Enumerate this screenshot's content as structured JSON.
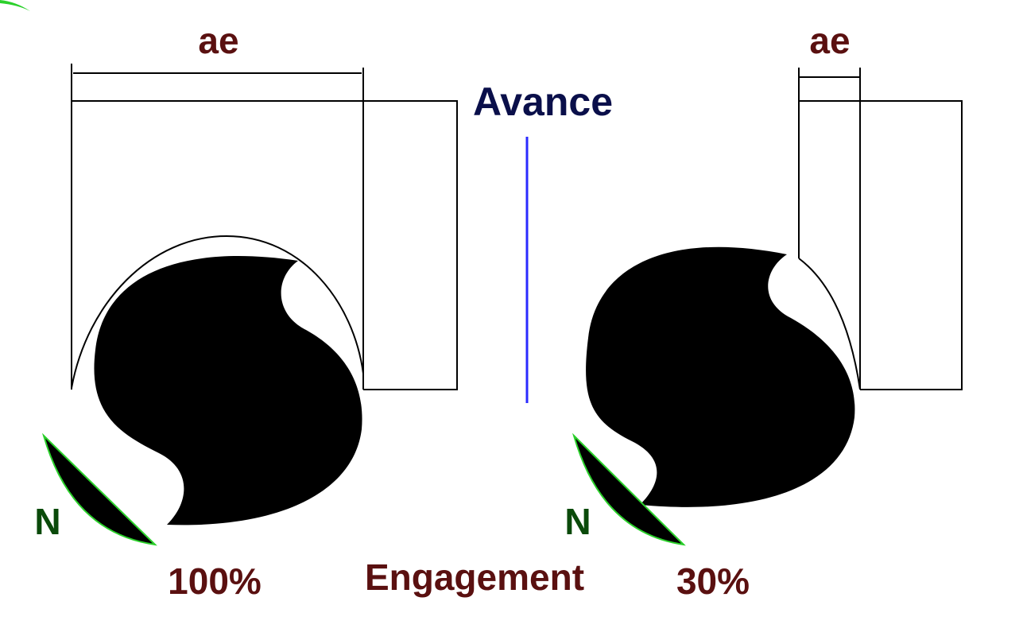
{
  "title": "Avance",
  "bottom_label": "Engagement",
  "left": {
    "dimension": "ae",
    "insert": "N",
    "engagement": "100%"
  },
  "right": {
    "dimension": "ae",
    "insert": "N",
    "engagement": "30%"
  }
}
